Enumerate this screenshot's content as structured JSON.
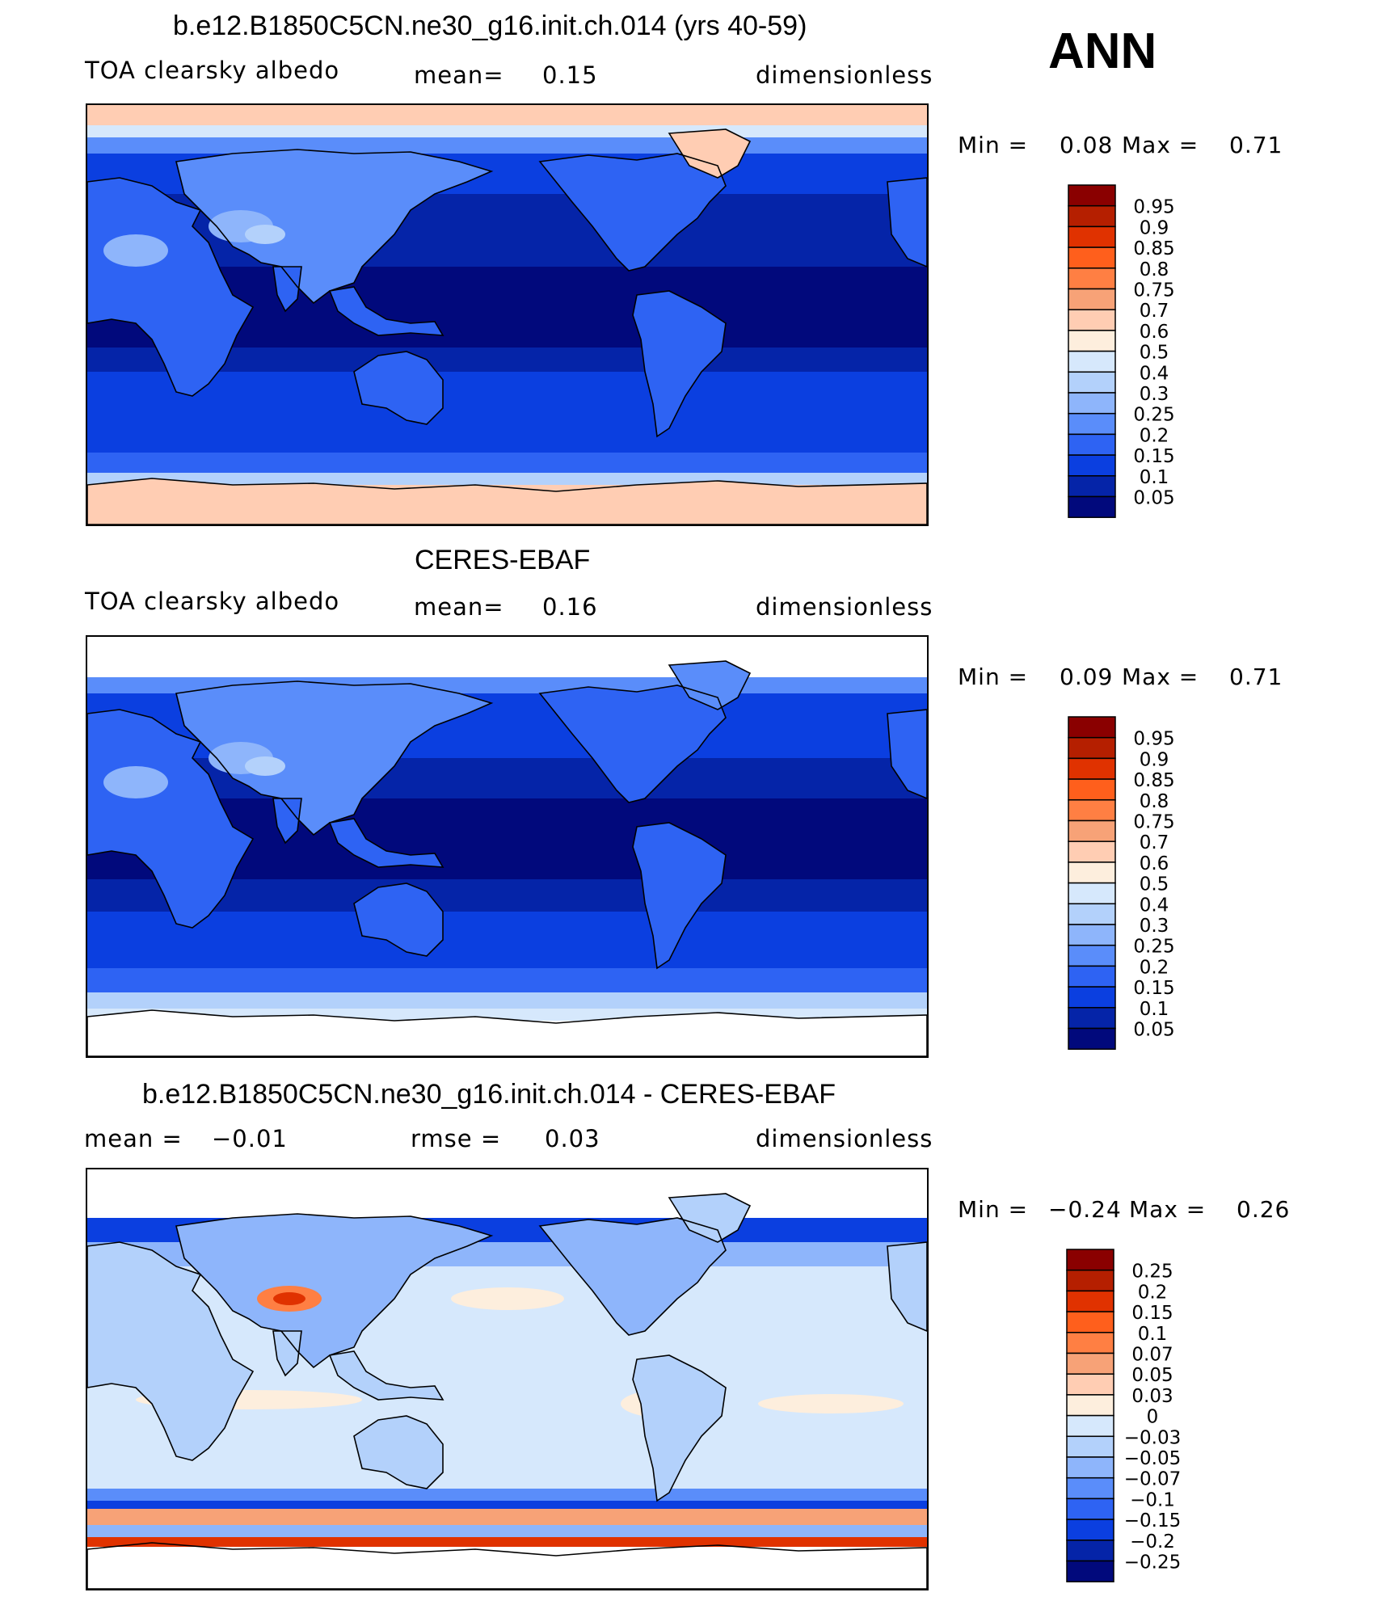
{
  "season": "ANN",
  "panels": [
    {
      "title": "b.e12.B1850C5CN.ne30_g16.init.ch.014 (yrs 40-59)",
      "left_label": "TOA clearsky albedo",
      "stat1_label": "mean=",
      "stat1_value": "0.15",
      "stat2_label": "",
      "stat2_value": "",
      "units": "dimensionless",
      "min_label": "Min =",
      "min_value": "0.08",
      "max_label": "Max =",
      "max_value": "0.71",
      "map_kind": "model",
      "colorbar": {
        "labels": [
          "0.95",
          "0.9",
          "0.85",
          "0.8",
          "0.75",
          "0.7",
          "0.6",
          "0.5",
          "0.4",
          "0.3",
          "0.25",
          "0.2",
          "0.15",
          "0.1",
          "0.05"
        ],
        "colors": [
          "#8a0000",
          "#b51f00",
          "#e03200",
          "#ff5f1c",
          "#ff7f43",
          "#f7a277",
          "#ffcdb3",
          "#fdeedd",
          "#d6e8fc",
          "#b3d1fb",
          "#8eb5fb",
          "#5a8dfa",
          "#2e63f3",
          "#0b3fe0",
          "#0524a8",
          "#01097c"
        ]
      }
    },
    {
      "title": "CERES-EBAF",
      "left_label": "TOA clearsky albedo",
      "stat1_label": "mean=",
      "stat1_value": "0.16",
      "stat2_label": "",
      "stat2_value": "",
      "units": "dimensionless",
      "min_label": "Min =",
      "min_value": "0.09",
      "max_label": "Max =",
      "max_value": "0.71",
      "map_kind": "obs",
      "colorbar": {
        "labels": [
          "0.95",
          "0.9",
          "0.85",
          "0.8",
          "0.75",
          "0.7",
          "0.6",
          "0.5",
          "0.4",
          "0.3",
          "0.25",
          "0.2",
          "0.15",
          "0.1",
          "0.05"
        ],
        "colors": [
          "#8a0000",
          "#b51f00",
          "#e03200",
          "#ff5f1c",
          "#ff7f43",
          "#f7a277",
          "#ffcdb3",
          "#fdeedd",
          "#d6e8fc",
          "#b3d1fb",
          "#8eb5fb",
          "#5a8dfa",
          "#2e63f3",
          "#0b3fe0",
          "#0524a8",
          "#01097c"
        ]
      }
    },
    {
      "title": "b.e12.B1850C5CN.ne30_g16.init.ch.014 - CERES-EBAF",
      "left_label": "mean =",
      "left_value": "−0.01",
      "stat1_label": "rmse =",
      "stat1_value": "0.03",
      "stat2_label": "",
      "stat2_value": "",
      "units": "dimensionless",
      "min_label": "Min =",
      "min_value": "−0.24",
      "max_label": "Max =",
      "max_value": "0.26",
      "map_kind": "diff",
      "colorbar": {
        "labels": [
          "0.25",
          "0.2",
          "0.15",
          "0.1",
          "0.07",
          "0.05",
          "0.03",
          "0",
          "−0.03",
          "−0.05",
          "−0.07",
          "−0.1",
          "−0.15",
          "−0.2",
          "−0.25"
        ],
        "colors": [
          "#8a0000",
          "#b51f00",
          "#e03200",
          "#ff5f1c",
          "#ff7f43",
          "#f7a277",
          "#ffcdb3",
          "#fdeedd",
          "#d6e8fc",
          "#b3d1fb",
          "#8eb5fb",
          "#5a8dfa",
          "#2e63f3",
          "#0b3fe0",
          "#0524a8",
          "#01097c"
        ]
      }
    }
  ]
}
